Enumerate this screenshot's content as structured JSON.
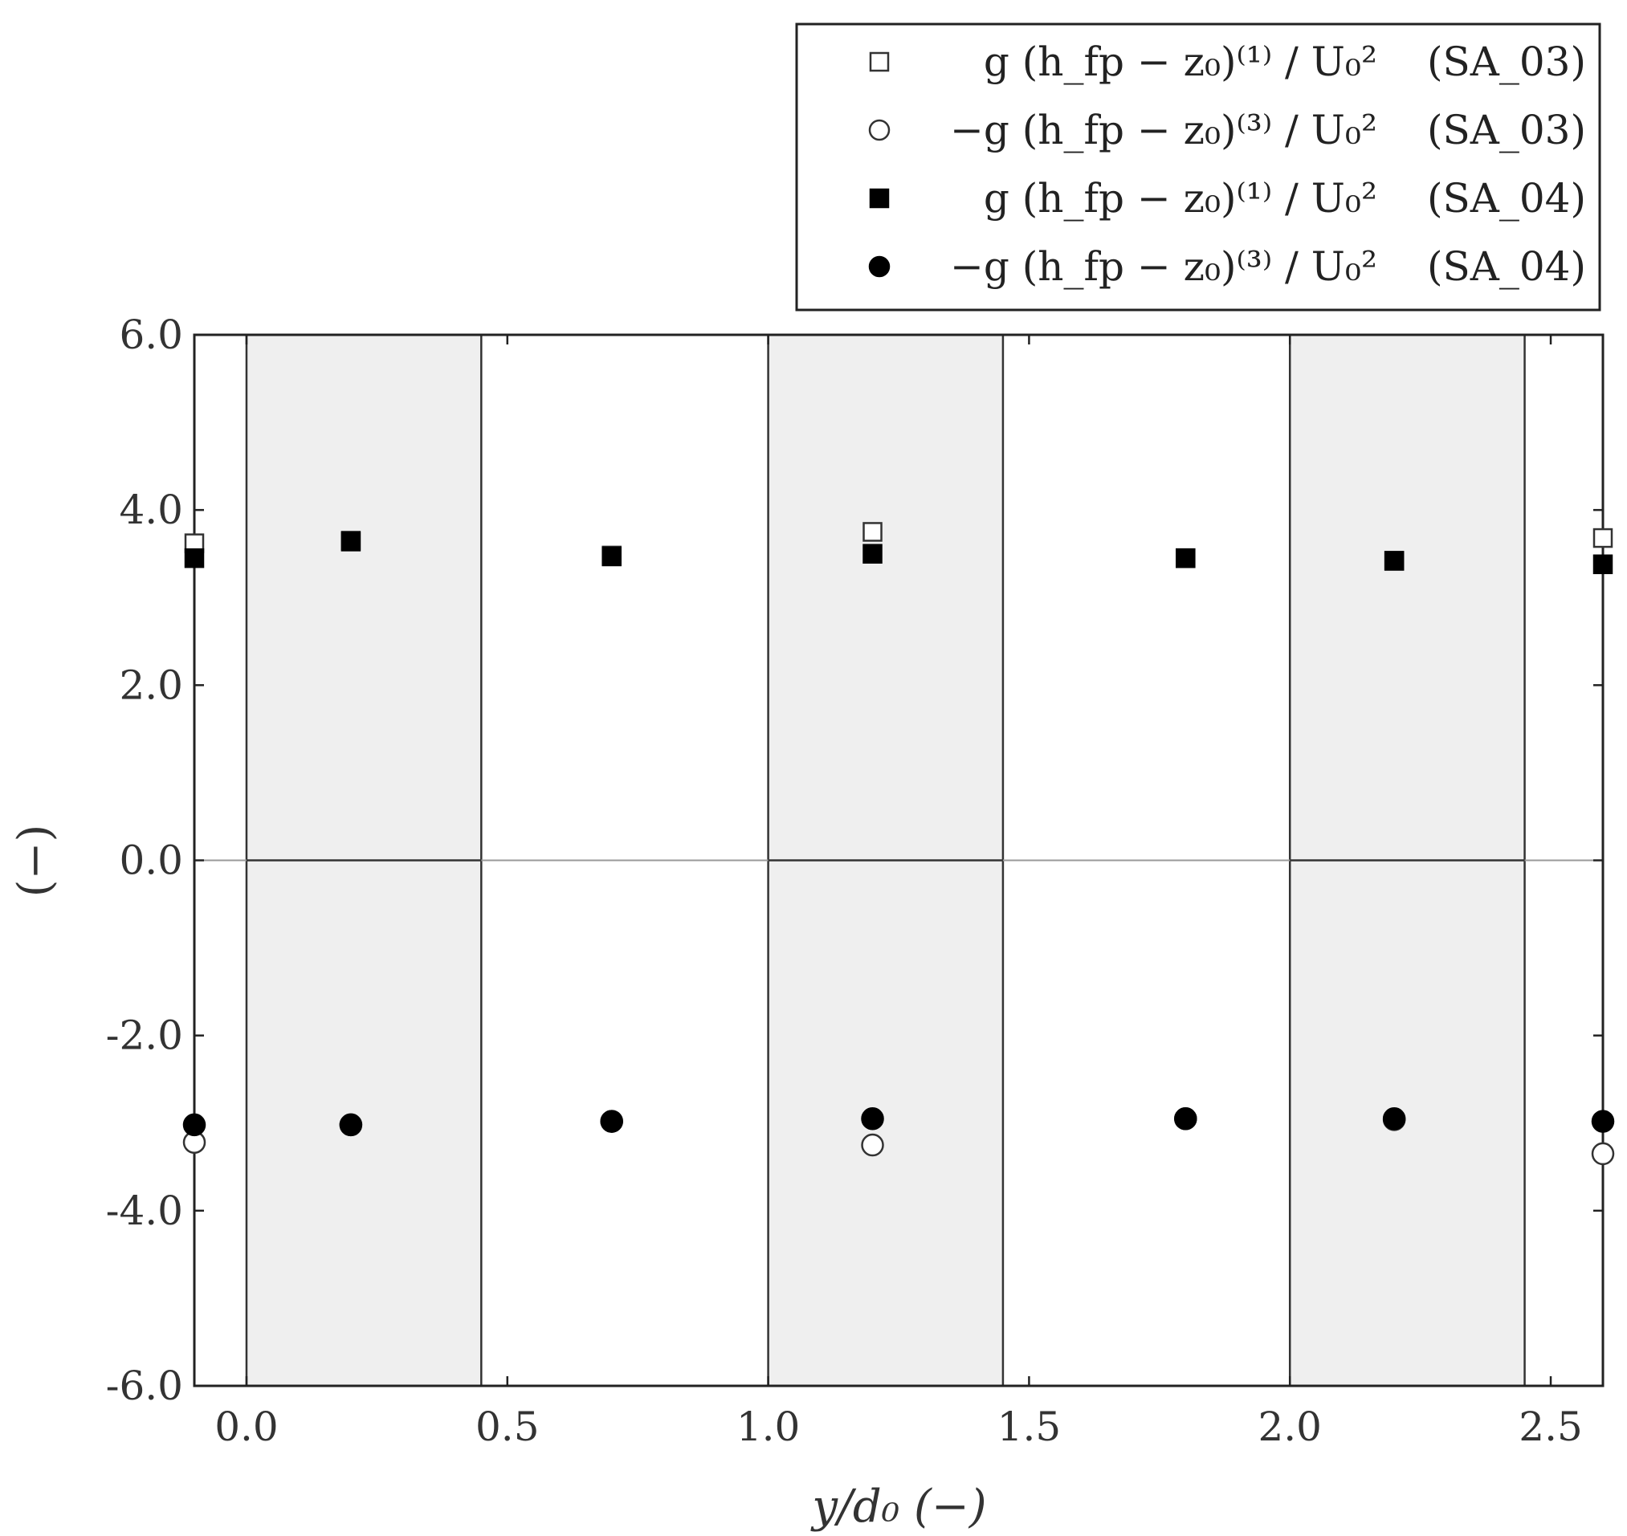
{
  "chart_data": {
    "type": "scatter",
    "xlabel": "y/d₀ (−)",
    "ylabel": "(−)",
    "xlim": [
      -0.1,
      2.6
    ],
    "ylim": [
      -6.0,
      6.0
    ],
    "x_ticks": [
      "0.0",
      "0.5",
      "1.0",
      "1.5",
      "2.0",
      "2.5"
    ],
    "y_ticks": [
      "6.0",
      "4.0",
      "2.0",
      "0.0",
      "-2.0",
      "-4.0",
      "-6.0"
    ],
    "shaded_bands": [
      [
        0.0,
        0.45
      ],
      [
        1.0,
        1.45
      ],
      [
        2.0,
        2.45
      ]
    ],
    "vertical_lines": [
      0.0,
      0.45,
      1.0,
      1.45,
      2.0,
      2.45
    ],
    "zero_line": 0.0,
    "legend_position": "top-right (outside plot)",
    "series": [
      {
        "name": "g (h_fp − z₀)⁽¹⁾ / U₀²",
        "tag": "(SA_03)",
        "marker": "square-open",
        "x": [
          -0.1,
          0.2,
          0.7,
          1.2,
          1.8,
          2.2,
          2.6
        ],
        "y": [
          3.62,
          3.65,
          3.48,
          3.75,
          3.45,
          3.42,
          3.68
        ]
      },
      {
        "name": "−g (h_fp − z₀)⁽³⁾ / U₀²",
        "tag": "(SA_03)",
        "marker": "circle-open",
        "x": [
          -0.1,
          0.2,
          0.7,
          1.2,
          1.8,
          2.2,
          2.6
        ],
        "y": [
          -3.22,
          -3.02,
          -2.98,
          -3.25,
          -2.95,
          -2.96,
          -3.35
        ]
      },
      {
        "name": "g (h_fp − z₀)⁽¹⁾ / U₀²",
        "tag": "(SA_04)",
        "marker": "square-filled",
        "x": [
          -0.1,
          0.2,
          0.7,
          1.2,
          1.8,
          2.2,
          2.6
        ],
        "y": [
          3.45,
          3.64,
          3.47,
          3.5,
          3.45,
          3.42,
          3.38
        ]
      },
      {
        "name": "−g (h_fp − z₀)⁽³⁾ / U₀²",
        "tag": "(SA_04)",
        "marker": "circle-filled",
        "x": [
          -0.1,
          0.2,
          0.7,
          1.2,
          1.8,
          2.2,
          2.6
        ],
        "y": [
          -3.02,
          -3.02,
          -2.98,
          -2.95,
          -2.95,
          -2.95,
          -2.98
        ]
      }
    ]
  }
}
